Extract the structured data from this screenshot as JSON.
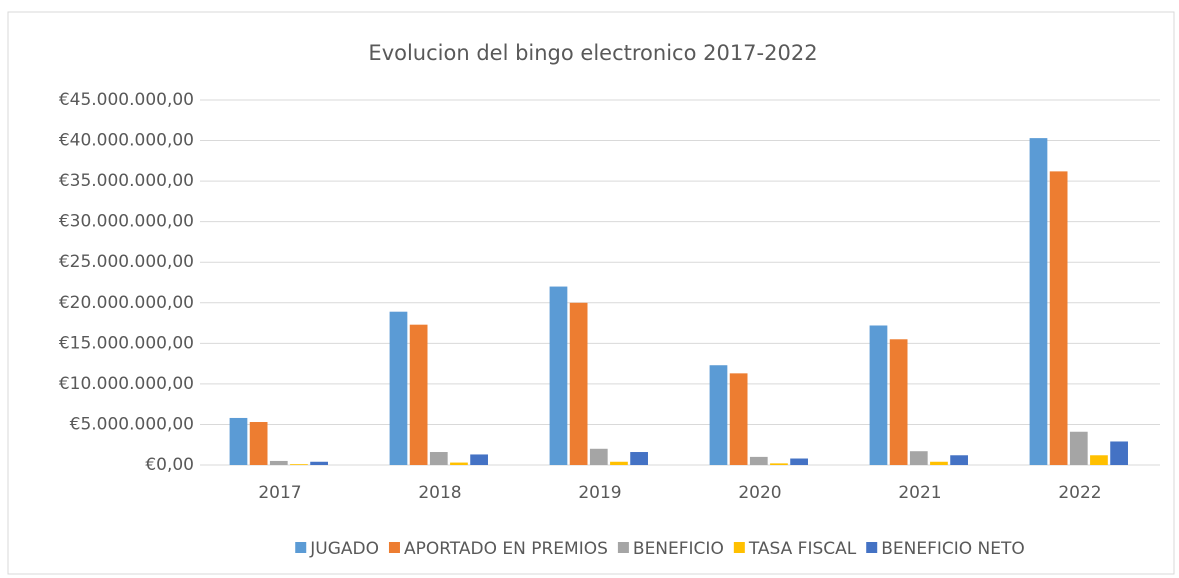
{
  "chart_data": {
    "type": "bar",
    "title": "Evolucion del bingo electronico 2017-2022",
    "categories": [
      "2017",
      "2018",
      "2019",
      "2020",
      "2021",
      "2022"
    ],
    "series": [
      {
        "name": "JUGADO",
        "color": "#5b9bd5",
        "values": [
          5800000,
          18900000,
          22000000,
          12300000,
          17200000,
          40300000
        ]
      },
      {
        "name": "APORTADO EN PREMIOS",
        "color": "#ed7d31",
        "values": [
          5300000,
          17300000,
          20000000,
          11300000,
          15500000,
          36200000
        ]
      },
      {
        "name": "BENEFICIO",
        "color": "#a5a5a5",
        "values": [
          500000,
          1600000,
          2000000,
          1000000,
          1700000,
          4100000
        ]
      },
      {
        "name": "TASA FISCAL",
        "color": "#ffc000",
        "values": [
          100000,
          300000,
          400000,
          200000,
          400000,
          1200000
        ]
      },
      {
        "name": "BENEFICIO NETO",
        "color": "#4472c4",
        "values": [
          400000,
          1300000,
          1600000,
          800000,
          1200000,
          2900000
        ]
      }
    ],
    "ylim": [
      0,
      45000000
    ],
    "yticks": [
      {
        "value": 0,
        "label": "€0,00"
      },
      {
        "value": 5000000,
        "label": "€5.000.000,00"
      },
      {
        "value": 10000000,
        "label": "€10.000.000,00"
      },
      {
        "value": 15000000,
        "label": "€15.000.000,00"
      },
      {
        "value": 20000000,
        "label": "€20.000.000,00"
      },
      {
        "value": 25000000,
        "label": "€25.000.000,00"
      },
      {
        "value": 30000000,
        "label": "€30.000.000,00"
      },
      {
        "value": 35000000,
        "label": "€35.000.000,00"
      },
      {
        "value": 40000000,
        "label": "€40.000.000,00"
      },
      {
        "value": 45000000,
        "label": "€45.000.000,00"
      }
    ],
    "grid": true,
    "legend": "bottom"
  }
}
